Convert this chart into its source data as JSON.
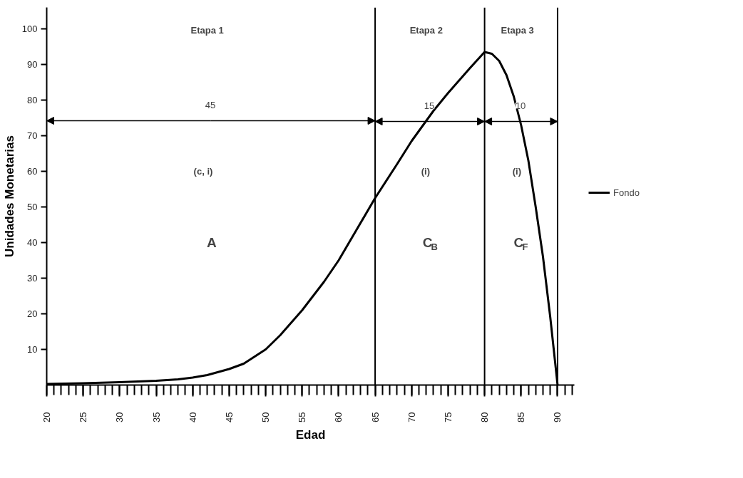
{
  "chart_data": {
    "type": "line",
    "xlabel": "Edad",
    "ylabel": "Unidades Monetarias",
    "x": [
      20,
      25,
      30,
      35,
      38,
      40,
      42,
      45,
      47,
      50,
      52,
      55,
      58,
      60,
      62,
      65,
      68,
      70,
      73,
      75,
      78,
      80,
      81,
      82,
      83,
      84,
      85,
      86,
      87,
      88,
      89,
      90
    ],
    "series": [
      {
        "name": "Fondo",
        "color": "#000000",
        "values": [
          0.3,
          0.5,
          0.8,
          1.2,
          1.6,
          2.1,
          2.8,
          4.5,
          6,
          10,
          14,
          21,
          29,
          35,
          42,
          52.5,
          62,
          68.5,
          77,
          82,
          89,
          93.5,
          93,
          91,
          87,
          81,
          73,
          63,
          50,
          36,
          19,
          0
        ]
      }
    ],
    "xlim": [
      20,
      92.3
    ],
    "ylim": [
      0,
      106
    ],
    "xticks": [
      20,
      25,
      30,
      35,
      40,
      45,
      50,
      55,
      60,
      65,
      70,
      75,
      80,
      85,
      90
    ],
    "yticks": [
      10,
      20,
      30,
      40,
      50,
      60,
      70,
      80,
      90,
      100
    ],
    "ref_lines": [
      {
        "axis": "x",
        "value": 65,
        "label": null
      },
      {
        "axis": "x",
        "value": 80,
        "label": null
      },
      {
        "axis": "x",
        "value": 90,
        "label": null
      }
    ],
    "annotations": [
      "Etapa 1",
      "Etapa 2",
      "Etapa 3",
      "45",
      {
        "text": "15",
        "x": 72.5,
        "y": 74
      },
      {
        "text": "10",
        "x": 85,
        "y": 74
      },
      "(c, i)",
      "(i)",
      "(i)",
      "A",
      "C$_{B}$",
      "C$_{F}$"
    ],
    "grid": false,
    "legend": "right",
    "marker": "none",
    "line_style": "solid"
  }
}
